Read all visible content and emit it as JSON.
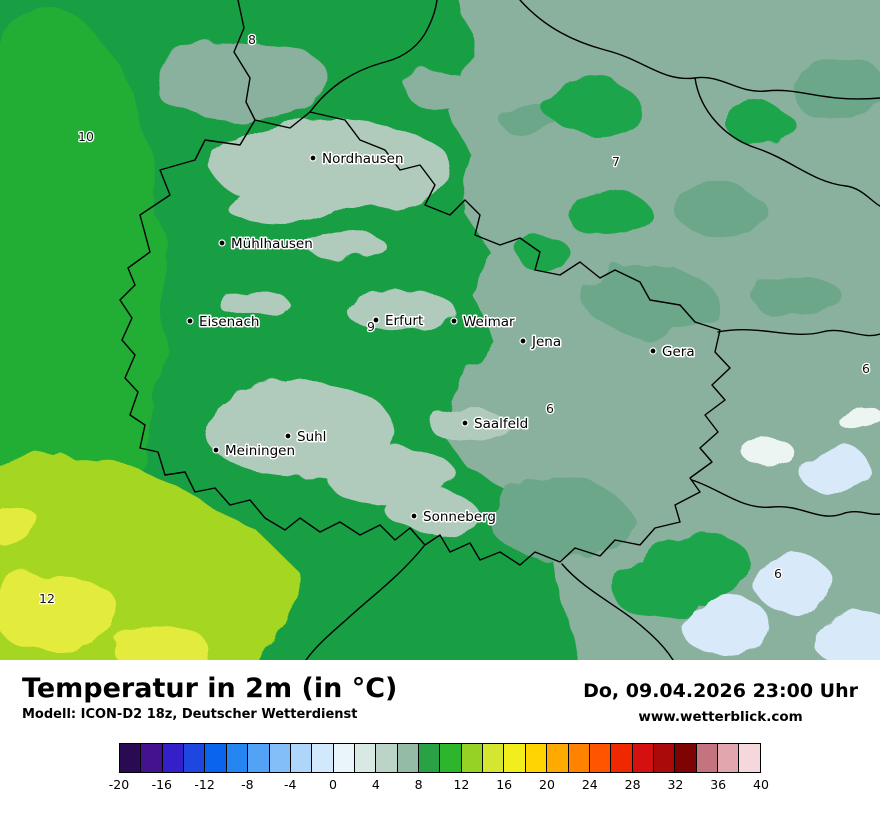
{
  "map": {
    "palette": {
      "base_green": "#189f44",
      "bright_green": "#23ad35",
      "green_patch": "#1ea54b",
      "sage": "#8ab19d",
      "sage_dark": "#6ca78a",
      "pale_green": "#b0cbbb",
      "yellow_green": "#a4d622",
      "yellow": "#e3eb3d",
      "ice_blue": "#d8e9fa",
      "pale_ice": "#edf5f2",
      "border": "#000000"
    },
    "cities": [
      {
        "name": "Nordhausen"
      },
      {
        "name": "Mühlhausen"
      },
      {
        "name": "Eisenach"
      },
      {
        "name": "Erfurt"
      },
      {
        "name": "Weimar"
      },
      {
        "name": "Jena"
      },
      {
        "name": "Gera"
      },
      {
        "name": "Suhl"
      },
      {
        "name": "Meiningen"
      },
      {
        "name": "Saalfeld"
      },
      {
        "name": "Sonneberg"
      }
    ],
    "temp_labels": [
      {
        "value": "8"
      },
      {
        "value": "10"
      },
      {
        "value": "7"
      },
      {
        "value": "9"
      },
      {
        "value": "6"
      },
      {
        "value": "6"
      },
      {
        "value": "6"
      },
      {
        "value": "12"
      }
    ]
  },
  "footer": {
    "title": "Temperatur in 2m (in °C)",
    "model_info": "Modell: ICON-D2 18z, Deutscher Wetterdienst",
    "datetime": "Do, 09.04.2026 23:00 Uhr",
    "website": "www.wetterblick.com"
  },
  "colorbar": {
    "ticks": [
      "-20",
      "-16",
      "-12",
      "-8",
      "-4",
      "0",
      "4",
      "8",
      "12",
      "16",
      "20",
      "24",
      "28",
      "32",
      "36",
      "40"
    ],
    "colors": [
      "#2a0a52",
      "#44128e",
      "#3420c8",
      "#1e46e0",
      "#0a64ee",
      "#2586f2",
      "#52a2f6",
      "#84bef8",
      "#aed6fa",
      "#d2e8fc",
      "#eaf5fb",
      "#d8e8e2",
      "#bcd4c8",
      "#94bba6",
      "#28a244",
      "#2db52d",
      "#96d224",
      "#d4e630",
      "#f2ee1e",
      "#ffd400",
      "#ffaa00",
      "#ff8200",
      "#ff5500",
      "#f02800",
      "#d41010",
      "#aa0a0a",
      "#7e0404",
      "#c4747e",
      "#e2a6ae",
      "#f4d8dc"
    ]
  }
}
